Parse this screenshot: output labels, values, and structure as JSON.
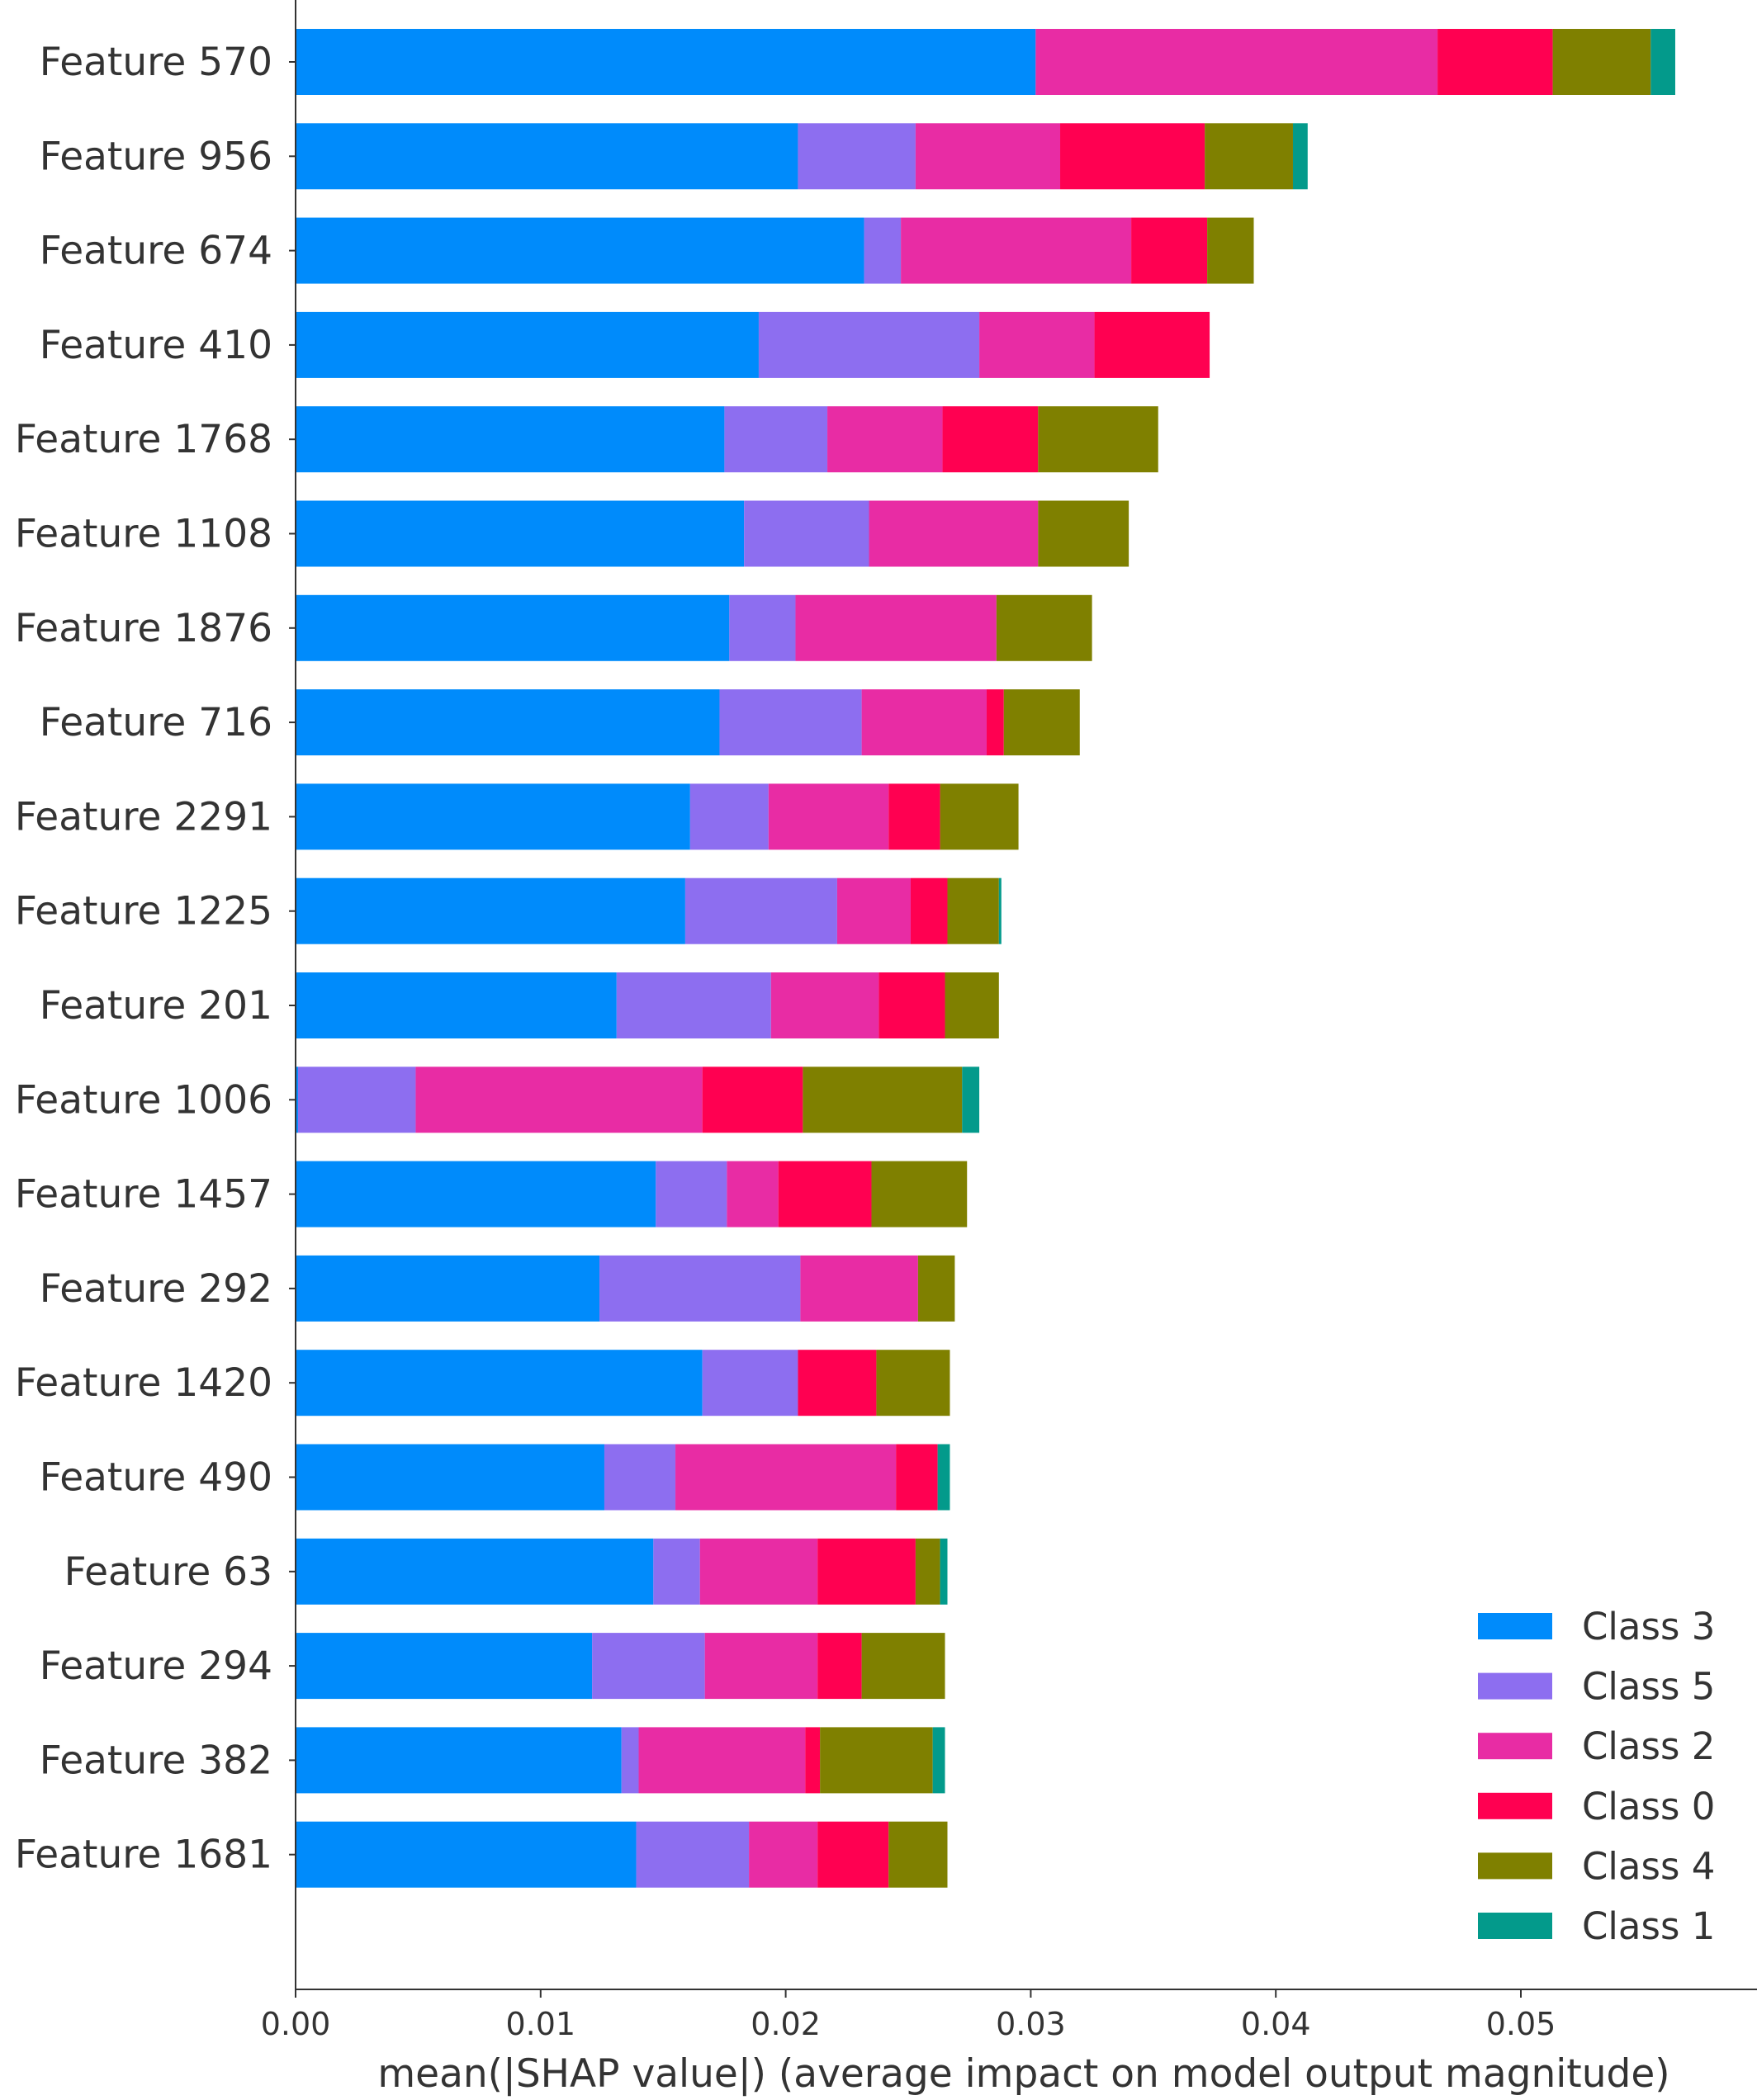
{
  "chart_data": {
    "type": "bar",
    "orientation": "horizontal",
    "stacked": true,
    "title": "",
    "xlabel": "mean(|SHAP value|) (average impact on model output magnitude)",
    "ylabel": "",
    "xlim": [
      0,
      0.0595
    ],
    "xticks": [
      "0.00",
      "0.01",
      "0.02",
      "0.03",
      "0.04",
      "0.05"
    ],
    "xtick_values": [
      0,
      0.01,
      0.02,
      0.03,
      0.04,
      0.05
    ],
    "grid": false,
    "legend_position": "lower-right",
    "categories": [
      "Feature 570",
      "Feature 956",
      "Feature 674",
      "Feature 410",
      "Feature 1768",
      "Feature 1108",
      "Feature 1876",
      "Feature 716",
      "Feature 2291",
      "Feature 1225",
      "Feature 201",
      "Feature 1006",
      "Feature 1457",
      "Feature 292",
      "Feature 1420",
      "Feature 490",
      "Feature 63",
      "Feature 294",
      "Feature 382",
      "Feature 1681"
    ],
    "series": [
      {
        "name": "Class 3",
        "color": "#008bfb",
        "values": [
          0.0302,
          0.0205,
          0.0232,
          0.0189,
          0.0175,
          0.0183,
          0.0177,
          0.0173,
          0.0161,
          0.0159,
          0.0131,
          0.0001,
          0.0147,
          0.0124,
          0.0166,
          0.0126,
          0.0146,
          0.0121,
          0.0133,
          0.0139
        ]
      },
      {
        "name": "Class 5",
        "color": "#8d6ef0",
        "values": [
          0.0,
          0.0048,
          0.0015,
          0.009,
          0.0042,
          0.0051,
          0.0027,
          0.0058,
          0.0032,
          0.0062,
          0.0063,
          0.0048,
          0.0029,
          0.0082,
          0.0039,
          0.0029,
          0.0019,
          0.0046,
          0.0007,
          0.0046
        ]
      },
      {
        "name": "Class 2",
        "color": "#e82ca4",
        "values": [
          0.0164,
          0.0059,
          0.0094,
          0.0047,
          0.0047,
          0.0069,
          0.0082,
          0.0051,
          0.0049,
          0.003,
          0.0044,
          0.0117,
          0.0021,
          0.0048,
          0.0,
          0.009,
          0.0048,
          0.0046,
          0.0068,
          0.0028
        ]
      },
      {
        "name": "Class 0",
        "color": "#ff0051",
        "values": [
          0.0047,
          0.0059,
          0.0031,
          0.0047,
          0.0039,
          0.0,
          0.0,
          0.0007,
          0.0021,
          0.0015,
          0.0027,
          0.0041,
          0.0038,
          0.0,
          0.0032,
          0.0017,
          0.004,
          0.0018,
          0.0006,
          0.0029
        ]
      },
      {
        "name": "Class 4",
        "color": "#7f8000",
        "values": [
          0.004,
          0.0036,
          0.0019,
          0.0,
          0.0049,
          0.0037,
          0.0039,
          0.0031,
          0.0032,
          0.0021,
          0.0022,
          0.0065,
          0.0039,
          0.0015,
          0.003,
          0.0,
          0.001,
          0.0034,
          0.0046,
          0.0024
        ]
      },
      {
        "name": "Class 1",
        "color": "#039a8b",
        "values": [
          0.001,
          0.0006,
          0.0,
          0.0,
          0.0,
          0.0,
          0.0,
          0.0,
          0.0,
          0.0001,
          0.0,
          0.0007,
          0.0,
          0.0,
          0.0,
          0.0005,
          0.0003,
          0.0,
          0.0005,
          0.0
        ]
      }
    ],
    "legend_order": [
      "Class 3",
      "Class 5",
      "Class 2",
      "Class 0",
      "Class 4",
      "Class 1"
    ]
  }
}
